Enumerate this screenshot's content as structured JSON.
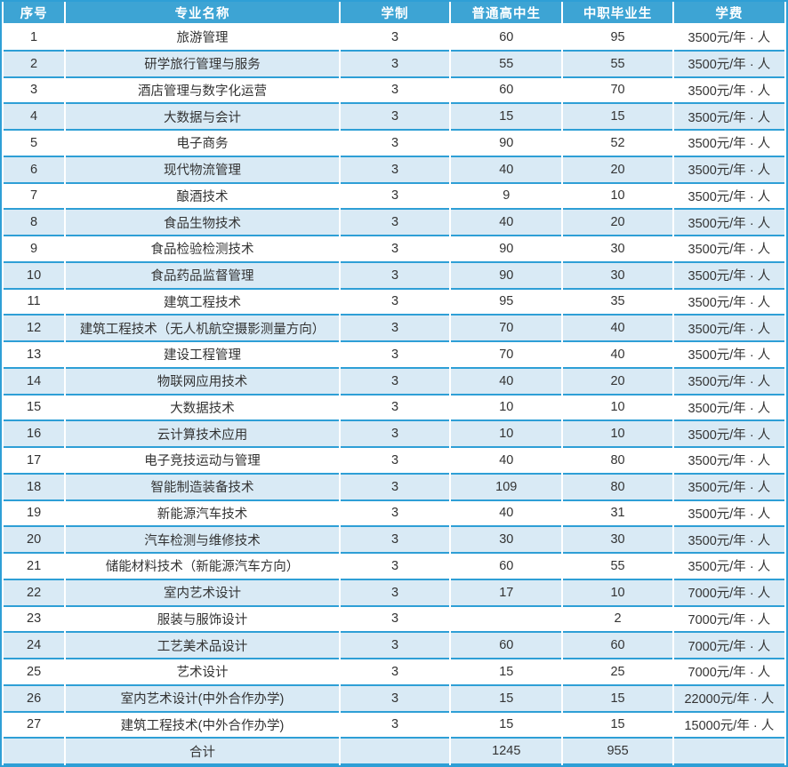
{
  "table": {
    "columns": [
      {
        "key": "index",
        "label": "序号"
      },
      {
        "key": "major",
        "label": "专业名称"
      },
      {
        "key": "years",
        "label": "学制"
      },
      {
        "key": "regular",
        "label": "普通高中生"
      },
      {
        "key": "vocational",
        "label": "中职毕业生"
      },
      {
        "key": "tuition",
        "label": "学费"
      }
    ],
    "rows": [
      [
        "1",
        "旅游管理",
        "3",
        "60",
        "95",
        "3500元/年 · 人"
      ],
      [
        "2",
        "研学旅行管理与服务",
        "3",
        "55",
        "55",
        "3500元/年 · 人"
      ],
      [
        "3",
        "酒店管理与数字化运营",
        "3",
        "60",
        "70",
        "3500元/年 · 人"
      ],
      [
        "4",
        "大数据与会计",
        "3",
        "15",
        "15",
        "3500元/年 · 人"
      ],
      [
        "5",
        "电子商务",
        "3",
        "90",
        "52",
        "3500元/年 · 人"
      ],
      [
        "6",
        "现代物流管理",
        "3",
        "40",
        "20",
        "3500元/年 · 人"
      ],
      [
        "7",
        "酿酒技术",
        "3",
        "9",
        "10",
        "3500元/年 · 人"
      ],
      [
        "8",
        "食品生物技术",
        "3",
        "40",
        "20",
        "3500元/年 · 人"
      ],
      [
        "9",
        "食品检验检测技术",
        "3",
        "90",
        "30",
        "3500元/年 · 人"
      ],
      [
        "10",
        "食品药品监督管理",
        "3",
        "90",
        "30",
        "3500元/年 · 人"
      ],
      [
        "11",
        "建筑工程技术",
        "3",
        "95",
        "35",
        "3500元/年 · 人"
      ],
      [
        "12",
        "建筑工程技术（无人机航空摄影测量方向）",
        "3",
        "70",
        "40",
        "3500元/年 · 人"
      ],
      [
        "13",
        "建设工程管理",
        "3",
        "70",
        "40",
        "3500元/年 · 人"
      ],
      [
        "14",
        "物联网应用技术",
        "3",
        "40",
        "20",
        "3500元/年 · 人"
      ],
      [
        "15",
        "大数据技术",
        "3",
        "10",
        "10",
        "3500元/年 · 人"
      ],
      [
        "16",
        "云计算技术应用",
        "3",
        "10",
        "10",
        "3500元/年 · 人"
      ],
      [
        "17",
        "电子竞技运动与管理",
        "3",
        "40",
        "80",
        "3500元/年 · 人"
      ],
      [
        "18",
        "智能制造装备技术",
        "3",
        "109",
        "80",
        "3500元/年 · 人"
      ],
      [
        "19",
        "新能源汽车技术",
        "3",
        "40",
        "31",
        "3500元/年 · 人"
      ],
      [
        "20",
        "汽车检测与维修技术",
        "3",
        "30",
        "30",
        "3500元/年 · 人"
      ],
      [
        "21",
        "储能材料技术（新能源汽车方向）",
        "3",
        "60",
        "55",
        "3500元/年 · 人"
      ],
      [
        "22",
        "室内艺术设计",
        "3",
        "17",
        "10",
        "7000元/年 · 人"
      ],
      [
        "23",
        "服装与服饰设计",
        "3",
        "",
        "2",
        "7000元/年 · 人"
      ],
      [
        "24",
        "工艺美术品设计",
        "3",
        "60",
        "60",
        "7000元/年 · 人"
      ],
      [
        "25",
        "艺术设计",
        "3",
        "15",
        "25",
        "7000元/年 · 人"
      ],
      [
        "26",
        "室内艺术设计(中外合作办学)",
        "3",
        "15",
        "15",
        "22000元/年 · 人"
      ],
      [
        "27",
        "建筑工程技术(中外合作办学)",
        "3",
        "15",
        "15",
        "15000元/年 · 人"
      ]
    ],
    "footer": [
      "",
      "合计",
      "",
      "1245",
      "955",
      ""
    ]
  },
  "colors": {
    "header_bg": "#3da4d4",
    "border": "#2e9fd6",
    "row_bg": "#ffffff",
    "row_alt_bg": "#d9eaf5",
    "header_text": "#ffffff",
    "body_text": "#333333"
  }
}
